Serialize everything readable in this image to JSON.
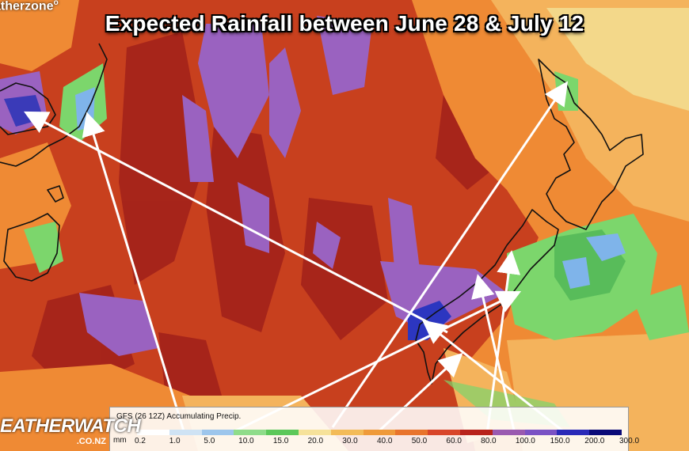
{
  "title": "Expected Rainfall between June 28 & July 12",
  "branding": {
    "top_logo": "atherzone",
    "top_logo_mark": "o",
    "bottom_logo": "EATHERWATCH",
    "bottom_logo_domain": ".CO.NZ"
  },
  "legend": {
    "title": "GFS (26 12Z) Accumulating Precip.",
    "unit": "mm",
    "ticks": [
      "0.2",
      "1.0",
      "5.0",
      "10.0",
      "15.0",
      "20.0",
      "30.0",
      "40.0",
      "50.0",
      "60.0",
      "80.0",
      "100.0",
      "150.0",
      "200.0",
      "300.0"
    ],
    "colors": [
      "#ffffff",
      "#cfe3f4",
      "#9dc6ec",
      "#8fdc8a",
      "#5cc85a",
      "#f6e29a",
      "#f3bb58",
      "#ef9a3a",
      "#e8742c",
      "#d8452a",
      "#b8241c",
      "#9a5ab0",
      "#7a52c4",
      "#2a2ab8",
      "#0a0a78"
    ]
  },
  "colors": {
    "sea_heavy": "#c23a1c",
    "dark_red": "#a82418",
    "orange": "#ef8a34",
    "light_orange": "#f4b35c",
    "yellow": "#f3d88a",
    "purple": "#9a62c0",
    "blue": "#2c36c0",
    "light_blue": "#7fb4ea",
    "green": "#7cd66c",
    "dark_green": "#58bc5a",
    "coast": "#111111",
    "arrow": "#ffffff"
  }
}
